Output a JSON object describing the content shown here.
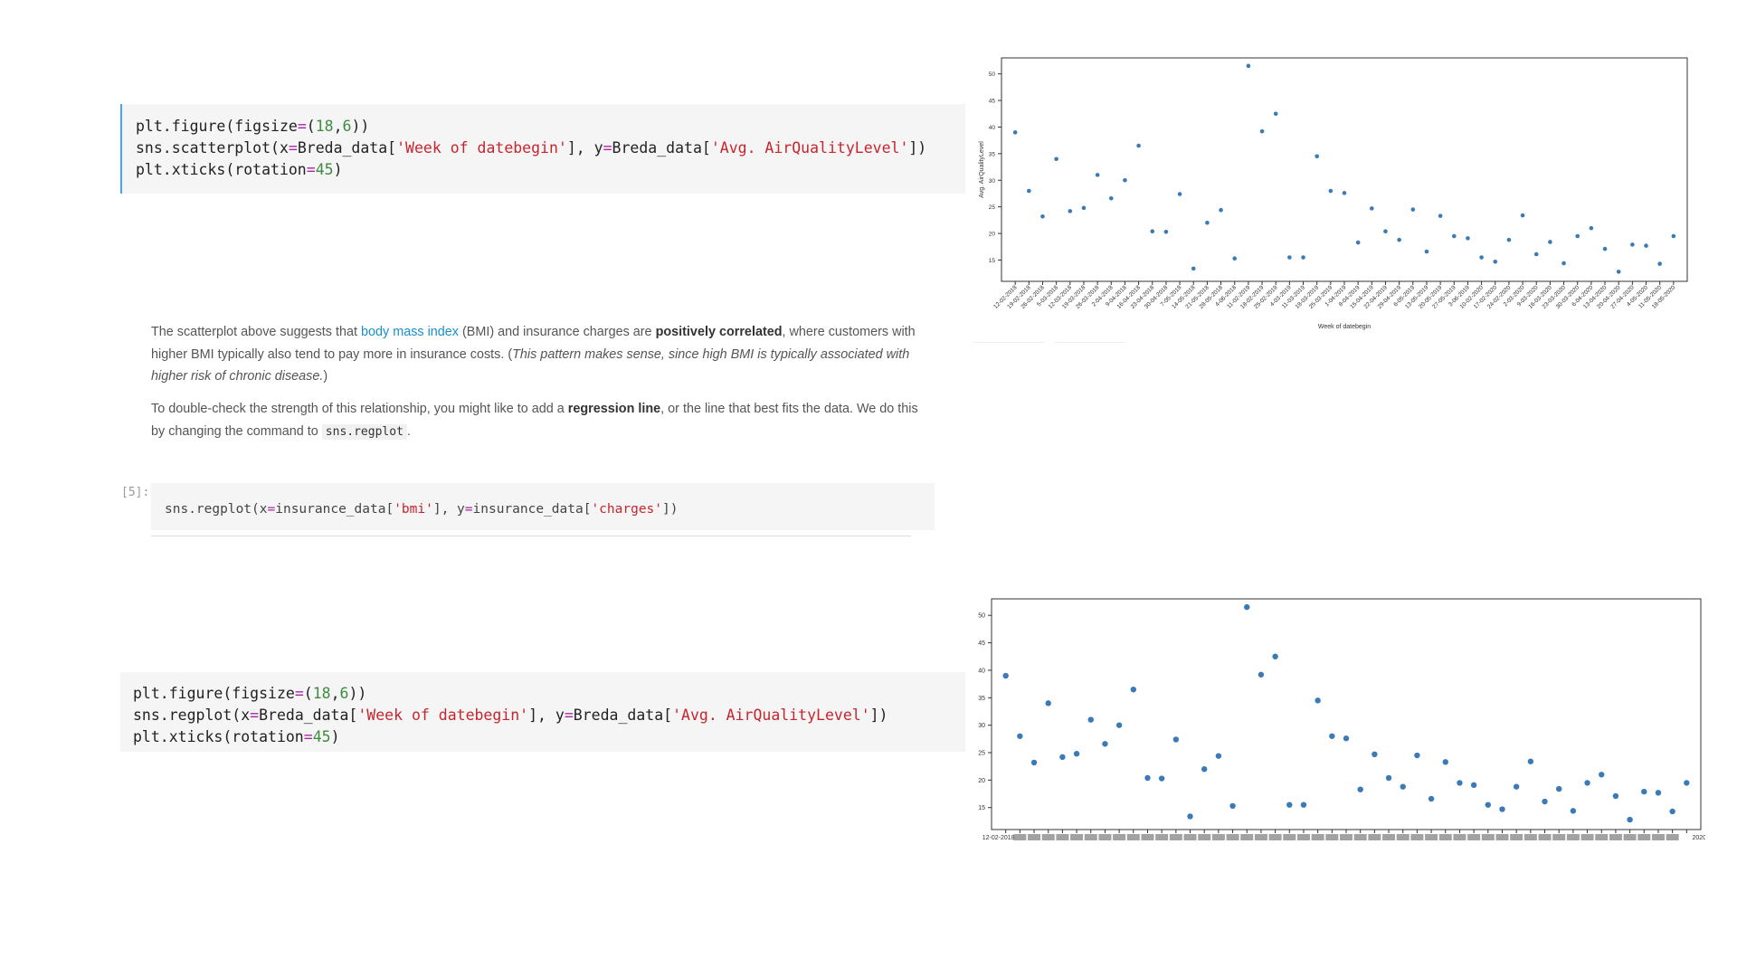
{
  "cell1": {
    "line1": {
      "fn": "plt.figure(figsize",
      "eq": "=",
      "open": "(",
      "n1": "18",
      "comma": ",",
      "n2": "6",
      "close": "))"
    },
    "line2": {
      "a": "sns.scatterplot(x",
      "eq1": "=",
      "b": "Breda_data[",
      "s1": "'Week of datebegin'",
      "c": "], y",
      "eq2": "=",
      "d": "Breda_data[",
      "s2": "'Avg. AirQualityLevel'",
      "e": "])"
    },
    "line3": {
      "a": "plt.xticks(rotation",
      "eq": "=",
      "n": "45",
      "b": ")"
    }
  },
  "markdown": {
    "p1_a": "The scatterplot above suggests that ",
    "p1_link": "body mass index",
    "p1_b": " (BMI) and insurance charges are ",
    "p1_bold": "positively correlated",
    "p1_c": ", where customers with higher BMI typically also tend to pay more in insurance costs. (",
    "p1_italic": "This pattern makes sense, since high BMI is typically associated with higher risk of chronic disease.",
    "p1_d": ")",
    "p2_a": "To double-check the strength of this relationship, you might like to add a ",
    "p2_bold": "regression line",
    "p2_b": ", or the line that best fits the data. We do this by changing the command to ",
    "p2_code": "sns.regplot",
    "p2_c": "."
  },
  "cell2": {
    "prompt": "[5]:",
    "a": "sns.regplot(x",
    "eq1": "=",
    "b": "insurance_data[",
    "s1": "'bmi'",
    "c": "], y",
    "eq2": "=",
    "d": "insurance_data[",
    "s2": "'charges'",
    "e": "])"
  },
  "cell3": {
    "line1": {
      "fn": "plt.figure(figsize",
      "eq": "=",
      "open": "(",
      "n1": "18",
      "comma": ",",
      "n2": "6",
      "close": "))"
    },
    "line2": {
      "a": "sns.regplot(x",
      "eq1": "=",
      "b": "Breda_data[",
      "s1": "'Week of datebegin'",
      "c": "], y",
      "eq2": "=",
      "d": "Breda_data[",
      "s2": "'Avg. AirQualityLevel'",
      "e": "])"
    },
    "line3": {
      "a": "plt.xticks(rotation",
      "eq": "=",
      "n": "45",
      "b": ")"
    }
  },
  "colors": {
    "point": "#3a7ab5",
    "axis": "#333333",
    "code_bg": "#f5f5f5",
    "cell_border": "#42a5f5",
    "link": "#1a8fd0",
    "string": "#c7252e",
    "number": "#3d8c40",
    "operator": "#a626a4"
  },
  "chart_data": [
    {
      "type": "scatter",
      "xlabel": "Week of datebegin",
      "ylabel": "Avg. AirQualityLevel",
      "yticks": [
        15,
        20,
        25,
        30,
        35,
        40,
        45,
        50
      ],
      "ylim": [
        11,
        53
      ],
      "xtick_rotation": 45,
      "x": [
        "12-02-2018",
        "19-02-2018",
        "26-02-2018",
        "5-03-2018",
        "12-03-2018",
        "19-03-2018",
        "26-03-2018",
        "2-04-2018",
        "9-04-2018",
        "16-04-2018",
        "23-04-2018",
        "30-04-2018",
        "7-05-2018",
        "14-05-2018",
        "21-05-2018",
        "28-05-2018",
        "4-06-2018",
        "11-02-2019",
        "18-02-2019",
        "25-02-2019",
        "4-03-2019",
        "11-03-2019",
        "18-03-2019",
        "25-03-2019",
        "1-04-2019",
        "8-04-2019",
        "15-04-2019",
        "22-04-2019",
        "29-04-2019",
        "6-05-2019",
        "13-05-2019",
        "20-05-2019",
        "27-05-2019",
        "3-06-2019",
        "10-02-2020",
        "17-02-2020",
        "24-02-2020",
        "2-03-2020",
        "9-03-2020",
        "16-03-2020",
        "23-03-2020",
        "30-03-2020",
        "6-04-2020",
        "13-04-2020",
        "20-04-2020",
        "27-04-2020",
        "4-05-2020",
        "11-05-2020",
        "18-05-2020"
      ],
      "y": [
        39,
        28,
        23.2,
        34,
        24.2,
        24.8,
        31,
        26.6,
        30,
        36.5,
        20.4,
        20.3,
        27.4,
        13.4,
        22,
        24.4,
        15.3,
        51.5,
        39.2,
        42.5,
        15.5,
        15.5,
        34.5,
        28,
        27.6,
        18.3,
        24.7,
        20.4,
        18.8,
        24.5,
        16.6,
        23.3,
        19.5,
        19.1,
        15.5,
        14.7,
        18.8,
        23.4,
        16.1,
        18.4,
        14.4,
        19.5,
        21,
        17.1,
        12.8,
        17.9,
        17.7,
        14.3,
        19.5
      ]
    },
    {
      "type": "scatter",
      "yticks": [
        15,
        20,
        25,
        30,
        35,
        40,
        45,
        50
      ],
      "ylim": [
        11,
        53
      ],
      "x_first_label": "12-02-2018",
      "x_last_label": "2020",
      "y": [
        39,
        28,
        23.2,
        34,
        24.2,
        24.8,
        31,
        26.6,
        30,
        36.5,
        20.4,
        20.3,
        27.4,
        13.4,
        22,
        24.4,
        15.3,
        51.5,
        39.2,
        42.5,
        15.5,
        15.5,
        34.5,
        28,
        27.6,
        18.3,
        24.7,
        20.4,
        18.8,
        24.5,
        16.6,
        23.3,
        19.5,
        19.1,
        15.5,
        14.7,
        18.8,
        23.4,
        16.1,
        18.4,
        14.4,
        19.5,
        21,
        17.1,
        12.8,
        17.9,
        17.7,
        14.3,
        19.5
      ]
    }
  ]
}
